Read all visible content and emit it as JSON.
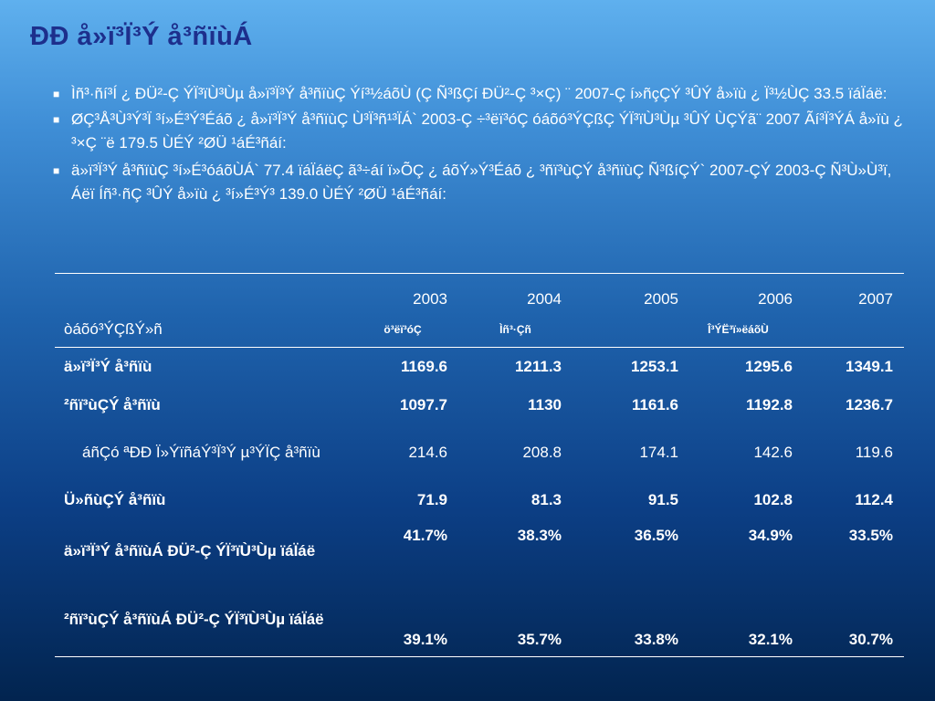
{
  "title": "ÐÐ å»ï³Ï³Ý å³ñïùÁ",
  "bullets": [
    "Ìñ³·ñí³Í ¿ ÐÜ²-Ç ÝÏ³ïÙ³Ùµ å»ï³Ï³Ý å³ñïùÇ Ýí³½áõÙ (Ç Ñ³ßÇí ÐÜ²-Ç ³×Ç) ¨ 2007-Ç í»ñçÇÝ ³ÛÝ å»ïù ¿ Ï³½ÙÇ 33.5 ïáÏáë:",
    "ØÇ³Å³Ù³Ý³Ï ³í»É³Ý³Éáõ ¿ å»ï³Ï³Ý å³ñïùÇ Ù³Ï³ñ¹³ÏÁ` 2003-Ç ÷³ëï³óÇ óáõó³ÝÇßÇ ÝÏ³ïÙ³Ùµ ³ÛÝ ÙÇÝã¨ 2007 Ãí³Ï³ÝÁ  å»ïù ¿ ³×Ç ¨ë 179.5 ÙÉÝ ²ØÜ ¹áÉ³ñáí:",
    "ä»ï³Ï³Ý å³ñïùÇ ³í»É³óáõÙÁ` 77.4 ïáÏáëÇ ã³÷áí ï»ÕÇ ¿ áõÝ»Ý³Éáõ ¿ ³ñï³ùÇÝ å³ñïùÇ Ñ³ßíÇÝ` 2007-ÇÝ  2003-Ç Ñ³Ù»Ù³ï, Áëï Íñ³·ñÇ ³ÛÝ å»ïù ¿ ³í»É³Ý³ 139.0 ÙÉÝ ²ØÜ ¹áÉ³ñáí:"
  ],
  "bullet_glyph": "■",
  "table": {
    "row_header_label": "òáõó³ÝÇßÝ»ñ",
    "years": [
      "2003",
      "2004",
      "2005",
      "2006",
      "2007"
    ],
    "sub_headers": [
      "ö³ëï³óÇ",
      "Ìñ³·Çñ",
      "Î³ÝË³ï»ëáõÙ"
    ],
    "rows": [
      {
        "label": "ä»ï³Ï³Ý å³ñïù",
        "values": [
          "1169.6",
          "1211.3",
          "1253.1",
          "1295.6",
          "1349.1"
        ]
      },
      {
        "label": "²ñï³ùÇÝ å³ñïù",
        "values": [
          "1097.7",
          "1130",
          "1161.6",
          "1192.8",
          "1236.7"
        ]
      },
      {
        "label": "áñÇó ªÐÐ Ï»ÝïñáÝ³Ï³Ý µ³ÝÏÇ å³ñïù",
        "values": [
          "214.6",
          "208.8",
          "174.1",
          "142.6",
          "119.6"
        ]
      },
      {
        "label": "Ü»ñùÇÝ å³ñïù",
        "values": [
          "71.9",
          "81.3",
          "91.5",
          "102.8",
          "112.4"
        ]
      },
      {
        "label": "ä»ï³Ï³Ý å³ñïùÁ ÐÜ²-Ç ÝÏ³ïÙ³Ùµ ïáÏáë",
        "values": [
          "41.7%",
          "38.3%",
          "36.5%",
          "34.9%",
          "33.5%"
        ]
      },
      {
        "label": "²ñï³ùÇÝ å³ñïùÁ ÐÜ²-Ç ÝÏ³ïÙ³Ùµ ïáÏáë",
        "values": [
          "39.1%",
          "35.7%",
          "33.8%",
          "32.1%",
          "30.7%"
        ]
      }
    ]
  }
}
